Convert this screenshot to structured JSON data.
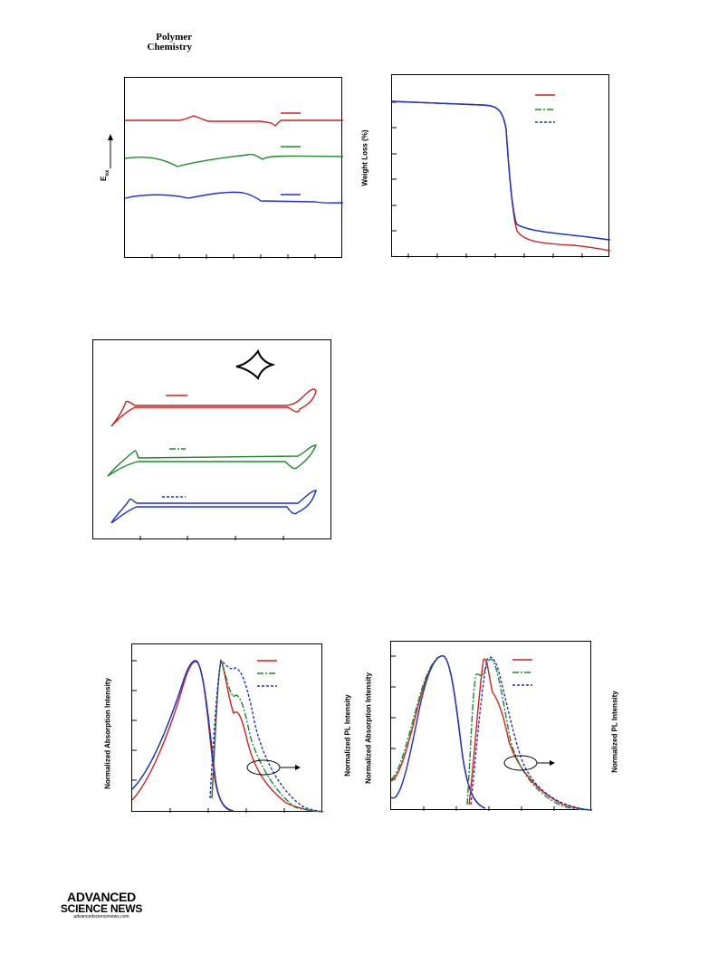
{
  "header": {
    "journal_line1": "Polymer",
    "journal_line2": "Chemistry"
  },
  "figures": {
    "cv_top": {
      "ylabel": "E",
      "ylabel_sub": "ox",
      "series_colors": [
        "#d02020",
        "#1a8a2a",
        "#1f2fd0"
      ]
    },
    "tga": {
      "ylabel": "Weight Loss (%)",
      "legend_styles": [
        "solid",
        "dashdot",
        "dotted"
      ],
      "series_colors": [
        "#d02020",
        "#1a8a2a",
        "#1f2fd0"
      ]
    },
    "cv_cycle": {
      "series_colors": [
        "#d02020",
        "#1a8a2a",
        "#1f2fd0"
      ]
    },
    "abs_pl_left": {
      "ylabel_left": "Normalized Absorption Intensity",
      "ylabel_right": "Normalized PL Intensity"
    },
    "abs_pl_right": {
      "ylabel_left": "Normalized Absorption Intensity",
      "ylabel_right": "Normalized PL Intensity"
    }
  },
  "footer": {
    "logo_line1": "ADVANCED",
    "logo_line2": "SCIENCE NEWS",
    "logo_line3": "advancedsciencenews.com"
  },
  "chart_data": [
    {
      "type": "line",
      "title": "",
      "xlabel": "",
      "ylabel": "E ox",
      "series": [
        {
          "color": "#d02020",
          "style": "solid"
        },
        {
          "color": "#1a8a2a",
          "style": "solid"
        },
        {
          "color": "#1f2fd0",
          "style": "solid"
        }
      ]
    },
    {
      "type": "line",
      "title": "",
      "xlabel": "",
      "ylabel": "Weight Loss (%)",
      "series": [
        {
          "color": "#d02020",
          "style": "solid"
        },
        {
          "color": "#1a8a2a",
          "style": "dashdot"
        },
        {
          "color": "#1f2fd0",
          "style": "dotted"
        }
      ]
    },
    {
      "type": "line",
      "title": "",
      "xlabel": "",
      "ylabel": "",
      "series": [
        {
          "color": "#d02020",
          "style": "solid"
        },
        {
          "color": "#1a8a2a",
          "style": "dashdot"
        },
        {
          "color": "#1f2fd0",
          "style": "dotted"
        }
      ]
    },
    {
      "type": "line",
      "title": "",
      "ylabel": "Normalized Absorption Intensity",
      "ylabel_right": "Normalized PL Intensity",
      "series": [
        {
          "color": "#d02020",
          "style": "solid"
        },
        {
          "color": "#1a8a2a",
          "style": "dashdot"
        },
        {
          "color": "#1f2fd0",
          "style": "dotted"
        }
      ]
    },
    {
      "type": "line",
      "title": "",
      "ylabel": "Normalized Absorption Intensity",
      "ylabel_right": "Normalized PL Intensity",
      "series": [
        {
          "color": "#d02020",
          "style": "solid"
        },
        {
          "color": "#1a8a2a",
          "style": "dashdot"
        },
        {
          "color": "#1f2fd0",
          "style": "dotted"
        }
      ]
    }
  ]
}
